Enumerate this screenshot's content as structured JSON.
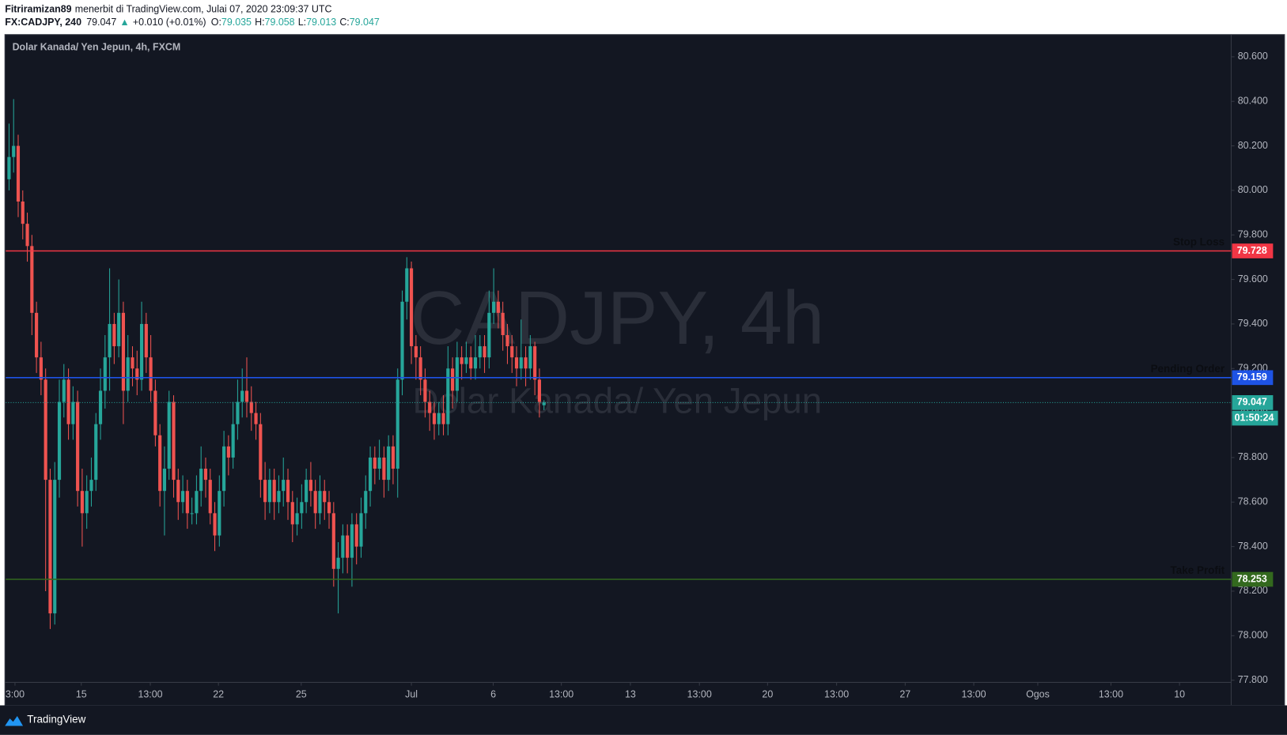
{
  "header": {
    "author": "Fitriramizan89",
    "published": "menerbit di TradingView.com, Julai 07, 2020 23:09:37 UTC",
    "symbol": "FX:CADJPY, 240",
    "arrow": "▲",
    "change": "+0.010 (+0.01%)",
    "o_label": "O:",
    "h_label": "H:",
    "l_label": "L:",
    "c_label": "C:"
  },
  "footer": {
    "brand": "TradingView"
  },
  "chart_data": {
    "type": "candlestick",
    "title": "Dolar Kanada/ Yen Jepun, 4h, FXCM",
    "watermark": {
      "symbol": "CADJPY, 4h",
      "description": "Dolar Kanada/ Yen Jepun"
    },
    "up_color": "#26a69a",
    "down_color": "#ef5350",
    "open": [
      80.05,
      80.15,
      80.2,
      79.95,
      79.85,
      79.75,
      79.45,
      79.25,
      79.15,
      78.7,
      78.1,
      78.7,
      79.05,
      79.15,
      78.95,
      79.05,
      78.65,
      78.55,
      78.65,
      78.7,
      78.95,
      79.1,
      79.25,
      79.4,
      79.3,
      79.45,
      79.1,
      79.25,
      79.2,
      79.15,
      79.4,
      79.25,
      79.1,
      78.9,
      78.65,
      78.75,
      79.05,
      78.7,
      78.6,
      78.65,
      78.55,
      78.55,
      78.65,
      78.75,
      78.7,
      78.55,
      78.45,
      78.65,
      78.85,
      78.8,
      78.95,
      79.05,
      79.1,
      79.05,
      79.0,
      78.95,
      78.7,
      78.6,
      78.7,
      78.6,
      78.65,
      78.7,
      78.6,
      78.5,
      78.55,
      78.6,
      78.7,
      78.65,
      78.55,
      78.65,
      78.6,
      78.55,
      78.3,
      78.35,
      78.45,
      78.35,
      78.5,
      78.4,
      78.55,
      78.65,
      78.8,
      78.75,
      78.8,
      78.7,
      78.85,
      78.75,
      79.15,
      79.5,
      79.65,
      79.3,
      79.25,
      79.15,
      79.05,
      79.0,
      78.95,
      79.0,
      78.95,
      79.2,
      79.1,
      79.25,
      79.22,
      79.25,
      79.2,
      79.25,
      79.3,
      79.25,
      79.45,
      79.5,
      79.45,
      79.35,
      79.3,
      79.25,
      79.2,
      79.25,
      79.2,
      79.3,
      79.15,
      79.035
    ],
    "high": [
      80.3,
      80.41,
      80.25,
      80.0,
      79.9,
      79.8,
      79.5,
      79.32,
      79.2,
      78.75,
      78.78,
      79.15,
      79.22,
      79.2,
      79.12,
      79.1,
      78.75,
      78.72,
      78.8,
      79.0,
      79.2,
      79.35,
      79.65,
      79.45,
      79.6,
      79.5,
      79.35,
      79.3,
      79.28,
      79.5,
      79.45,
      79.35,
      79.15,
      78.95,
      78.85,
      79.1,
      79.08,
      78.75,
      78.72,
      78.7,
      78.62,
      78.72,
      78.85,
      78.8,
      78.75,
      78.6,
      78.72,
      78.92,
      78.9,
      79.05,
      79.15,
      79.2,
      79.25,
      79.12,
      79.05,
      79.0,
      78.78,
      78.75,
      78.75,
      78.72,
      78.8,
      78.75,
      78.65,
      78.62,
      78.68,
      78.75,
      78.78,
      78.7,
      78.72,
      78.7,
      78.65,
      78.6,
      78.42,
      78.5,
      78.5,
      78.55,
      78.55,
      78.62,
      78.72,
      78.85,
      78.85,
      78.88,
      78.85,
      78.9,
      78.9,
      79.2,
      79.55,
      79.7,
      79.68,
      79.35,
      79.3,
      79.2,
      79.1,
      79.05,
      79.05,
      79.08,
      79.3,
      79.25,
      79.32,
      79.3,
      79.32,
      79.3,
      79.35,
      79.35,
      79.35,
      79.55,
      79.65,
      79.55,
      79.5,
      79.4,
      79.35,
      79.3,
      79.42,
      79.3,
      79.35,
      79.32,
      79.2,
      79.058
    ],
    "low": [
      80.0,
      80.08,
      79.88,
      79.78,
      79.68,
      79.35,
      79.18,
      79.08,
      78.2,
      78.03,
      78.05,
      78.62,
      78.98,
      78.88,
      78.88,
      78.58,
      78.4,
      78.48,
      78.58,
      78.65,
      78.88,
      79.02,
      79.1,
      79.22,
      79.25,
      78.95,
      79.05,
      79.12,
      79.08,
      79.1,
      79.18,
      79.05,
      78.85,
      78.58,
      78.45,
      78.7,
      78.62,
      78.52,
      78.55,
      78.48,
      78.5,
      78.5,
      78.58,
      78.62,
      78.5,
      78.38,
      78.4,
      78.58,
      78.72,
      78.75,
      78.88,
      78.98,
      78.98,
      78.92,
      78.88,
      78.62,
      78.52,
      78.55,
      78.52,
      78.55,
      78.58,
      78.52,
      78.42,
      78.45,
      78.48,
      78.55,
      78.58,
      78.48,
      78.5,
      78.52,
      78.48,
      78.22,
      78.1,
      78.28,
      78.28,
      78.22,
      78.32,
      78.35,
      78.48,
      78.58,
      78.68,
      78.7,
      78.62,
      78.65,
      78.68,
      78.62,
      79.08,
      79.42,
      79.22,
      79.15,
      79.08,
      78.98,
      78.92,
      78.88,
      78.9,
      78.9,
      78.9,
      79.02,
      79.05,
      79.15,
      79.18,
      79.15,
      79.15,
      79.2,
      79.18,
      79.2,
      79.4,
      79.38,
      79.28,
      79.22,
      79.18,
      79.12,
      79.15,
      79.12,
      79.15,
      79.08,
      78.98,
      79.013
    ],
    "close": [
      80.15,
      80.2,
      79.95,
      79.85,
      79.75,
      79.45,
      79.25,
      79.15,
      78.7,
      78.1,
      78.7,
      79.05,
      79.15,
      78.95,
      79.05,
      78.65,
      78.55,
      78.65,
      78.7,
      78.95,
      79.1,
      79.25,
      79.4,
      79.3,
      79.45,
      79.1,
      79.25,
      79.2,
      79.15,
      79.4,
      79.25,
      79.1,
      78.9,
      78.65,
      78.75,
      79.05,
      78.7,
      78.6,
      78.65,
      78.55,
      78.55,
      78.65,
      78.75,
      78.7,
      78.55,
      78.45,
      78.65,
      78.85,
      78.8,
      78.95,
      79.05,
      79.1,
      79.05,
      79.0,
      78.95,
      78.7,
      78.6,
      78.7,
      78.6,
      78.65,
      78.7,
      78.6,
      78.5,
      78.55,
      78.6,
      78.7,
      78.65,
      78.55,
      78.65,
      78.6,
      78.55,
      78.3,
      78.35,
      78.45,
      78.35,
      78.5,
      78.4,
      78.55,
      78.65,
      78.8,
      78.75,
      78.8,
      78.7,
      78.85,
      78.75,
      79.15,
      79.5,
      79.65,
      79.3,
      79.25,
      79.15,
      79.05,
      79.0,
      78.95,
      79.0,
      78.95,
      79.2,
      79.1,
      79.25,
      79.22,
      79.25,
      79.2,
      79.25,
      79.3,
      79.25,
      79.45,
      79.5,
      79.45,
      79.35,
      79.3,
      79.25,
      79.2,
      79.25,
      79.2,
      79.3,
      79.15,
      79.05,
      79.047
    ],
    "ylim": [
      77.79,
      80.7
    ],
    "yticks": [
      {
        "value": 77.8,
        "label": "77.800"
      },
      {
        "value": 78.0,
        "label": "78.000"
      },
      {
        "value": 78.2,
        "label": "78.200"
      },
      {
        "value": 78.4,
        "label": "78.400"
      },
      {
        "value": 78.6,
        "label": "78.600"
      },
      {
        "value": 78.8,
        "label": "78.800"
      },
      {
        "value": 79.0,
        "label": "79.000"
      },
      {
        "value": 79.2,
        "label": "79.200"
      },
      {
        "value": 79.4,
        "label": "79.400"
      },
      {
        "value": 79.6,
        "label": "79.600"
      },
      {
        "value": 79.8,
        "label": "79.800"
      },
      {
        "value": 80.0,
        "label": "80.000"
      },
      {
        "value": 80.2,
        "label": "80.200"
      },
      {
        "value": 80.4,
        "label": "80.400"
      },
      {
        "value": 80.6,
        "label": "80.600"
      }
    ],
    "xlim": [
      -0.72,
      267.3
    ],
    "xticks": [
      {
        "value": 1.3,
        "label": "3:00"
      },
      {
        "value": 15.8,
        "label": "15"
      },
      {
        "value": 30.9,
        "label": "13:00"
      },
      {
        "value": 45.8,
        "label": "22"
      },
      {
        "value": 63.9,
        "label": "25"
      },
      {
        "value": 88.0,
        "label": "Jul"
      },
      {
        "value": 105.9,
        "label": "6"
      },
      {
        "value": 120.8,
        "label": "13:00"
      },
      {
        "value": 135.9,
        "label": "13"
      },
      {
        "value": 151.0,
        "label": "13:00"
      },
      {
        "value": 165.9,
        "label": "20"
      },
      {
        "value": 181.0,
        "label": "13:00"
      },
      {
        "value": 196.0,
        "label": "27"
      },
      {
        "value": 211.0,
        "label": "13:00"
      },
      {
        "value": 225.0,
        "label": "Ogos"
      },
      {
        "value": 241.0,
        "label": "13:00"
      },
      {
        "value": 256.0,
        "label": "10"
      }
    ],
    "levels": [
      {
        "name": "Stop Loss",
        "value": 79.728,
        "color": "#f23645"
      },
      {
        "name": "Pending Order",
        "value": 79.159,
        "color": "#1e53e5"
      },
      {
        "name": "Take Profit",
        "value": 78.253,
        "color": "#33691e"
      }
    ],
    "last_price_color": "#26a69a",
    "countdown": "01:50:24"
  }
}
